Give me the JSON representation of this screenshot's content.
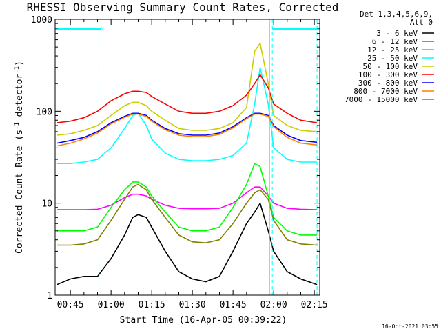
{
  "chart_data": {
    "type": "line",
    "title": "RHESSI Observing Summary Count Rates, Corrected",
    "xlabel": "Start Time (16-Apr-05 00:39:22)",
    "ylabel_main": "Corrected Count Rate (s",
    "ylabel_sup1": "-1",
    "ylabel_mid": " detector",
    "ylabel_sup2": "-1",
    "ylabel_end": ")",
    "yscale": "log",
    "ylim": [
      1,
      1000
    ],
    "xlim": [
      "00:39:22",
      "02:17:00"
    ],
    "x_ticks": [
      "00:45",
      "01:00",
      "01:15",
      "01:30",
      "01:45",
      "02:00",
      "02:15"
    ],
    "y_ticks": [
      "1",
      "10",
      "100",
      "1000"
    ],
    "grid": false,
    "legend_position": "right",
    "legend_header": [
      "Det 1,3,4,5,6,9,",
      "Att 0"
    ],
    "markers": {
      "night_bars": [
        [
          "00:39:22",
          "00:56:30"
        ],
        [
          "01:59:30",
          "02:17:00"
        ]
      ],
      "night_label": "N",
      "vlines_solid": [
        "00:39:22",
        "01:58:30"
      ],
      "vlines_dashed": [
        "00:55:30",
        "01:59:30",
        "02:16:00"
      ]
    },
    "series": [
      {
        "name": "3 - 6 keV",
        "color": "#000000",
        "x": [
          "00:40",
          "00:45",
          "00:50",
          "00:55",
          "01:00",
          "01:05",
          "01:08",
          "01:10",
          "01:13",
          "01:15",
          "01:20",
          "01:25",
          "01:30",
          "01:35",
          "01:40",
          "01:45",
          "01:50",
          "01:53",
          "01:55",
          "01:58",
          "02:00",
          "02:05",
          "02:10",
          "02:16"
        ],
        "values": [
          1.3,
          1.5,
          1.6,
          1.6,
          2.5,
          4.5,
          7,
          7.5,
          7,
          5.5,
          3,
          1.8,
          1.5,
          1.4,
          1.6,
          3,
          6,
          8,
          10,
          5,
          3,
          1.8,
          1.5,
          1.3
        ]
      },
      {
        "name": "6 - 12 keV",
        "color": "#ff00ff",
        "x": [
          "00:40",
          "00:45",
          "00:50",
          "00:55",
          "01:00",
          "01:05",
          "01:08",
          "01:10",
          "01:13",
          "01:15",
          "01:20",
          "01:25",
          "01:30",
          "01:35",
          "01:40",
          "01:45",
          "01:50",
          "01:53",
          "01:55",
          "01:58",
          "02:00",
          "02:05",
          "02:10",
          "02:16"
        ],
        "values": [
          8.5,
          8.5,
          8.5,
          8.6,
          9.5,
          11.5,
          12.5,
          12.5,
          12,
          11,
          9.5,
          8.8,
          8.7,
          8.7,
          8.8,
          10,
          13,
          15,
          15,
          12,
          10,
          8.8,
          8.6,
          8.5
        ]
      },
      {
        "name": "12 - 25 keV",
        "color": "#00ff00",
        "x": [
          "00:40",
          "00:45",
          "00:50",
          "00:55",
          "01:00",
          "01:05",
          "01:08",
          "01:10",
          "01:13",
          "01:15",
          "01:20",
          "01:25",
          "01:30",
          "01:35",
          "01:40",
          "01:45",
          "01:50",
          "01:53",
          "01:55",
          "01:58",
          "02:00",
          "02:05",
          "02:10",
          "02:16"
        ],
        "values": [
          5,
          5,
          5,
          5.5,
          9,
          14,
          17,
          17,
          15,
          12,
          8,
          5.5,
          5,
          5,
          5.5,
          9,
          16,
          27,
          25,
          12,
          7,
          5,
          4.5,
          4.5
        ]
      },
      {
        "name": "25 - 50 keV",
        "color": "#00ffff",
        "x": [
          "00:40",
          "00:45",
          "00:50",
          "00:55",
          "01:00",
          "01:05",
          "01:08",
          "01:10",
          "01:13",
          "01:15",
          "01:20",
          "01:25",
          "01:30",
          "01:35",
          "01:40",
          "01:45",
          "01:50",
          "01:53",
          "01:55",
          "01:58",
          "02:00",
          "02:05",
          "02:10",
          "02:16"
        ],
        "values": [
          27,
          27,
          28,
          30,
          40,
          65,
          90,
          95,
          70,
          50,
          35,
          30,
          29,
          29,
          30,
          33,
          45,
          120,
          300,
          120,
          40,
          30,
          28,
          28
        ]
      },
      {
        "name": "50 - 100 keV",
        "color": "#cccc00",
        "x": [
          "00:40",
          "00:45",
          "00:50",
          "00:55",
          "01:00",
          "01:05",
          "01:08",
          "01:10",
          "01:13",
          "01:15",
          "01:20",
          "01:25",
          "01:30",
          "01:35",
          "01:40",
          "01:45",
          "01:50",
          "01:53",
          "01:55",
          "01:58",
          "02:00",
          "02:05",
          "02:10",
          "02:16"
        ],
        "values": [
          55,
          57,
          62,
          70,
          90,
          115,
          125,
          125,
          115,
          100,
          80,
          65,
          62,
          62,
          65,
          75,
          110,
          450,
          550,
          200,
          90,
          70,
          62,
          60
        ]
      },
      {
        "name": "100 - 300 keV",
        "color": "#ff0000",
        "x": [
          "00:40",
          "00:45",
          "00:50",
          "00:55",
          "01:00",
          "01:05",
          "01:08",
          "01:10",
          "01:13",
          "01:15",
          "01:20",
          "01:25",
          "01:30",
          "01:35",
          "01:40",
          "01:45",
          "01:50",
          "01:53",
          "01:55",
          "01:58",
          "02:00",
          "02:05",
          "02:10",
          "02:16"
        ],
        "values": [
          75,
          78,
          85,
          100,
          130,
          155,
          165,
          165,
          160,
          145,
          120,
          100,
          95,
          95,
          100,
          115,
          150,
          200,
          250,
          180,
          120,
          95,
          80,
          75
        ]
      },
      {
        "name": "300 - 800 keV",
        "color": "#0000ff",
        "x": [
          "00:40",
          "00:45",
          "00:50",
          "00:55",
          "01:00",
          "01:05",
          "01:08",
          "01:10",
          "01:13",
          "01:15",
          "01:20",
          "01:25",
          "01:30",
          "01:35",
          "01:40",
          "01:45",
          "01:50",
          "01:53",
          "01:55",
          "01:58",
          "02:00",
          "02:05",
          "02:10",
          "02:16"
        ],
        "values": [
          45,
          48,
          52,
          60,
          75,
          88,
          95,
          95,
          90,
          80,
          65,
          57,
          55,
          55,
          58,
          68,
          85,
          95,
          95,
          90,
          70,
          55,
          48,
          46
        ]
      },
      {
        "name": "800 - 7000 keV",
        "color": "#ff7f00",
        "x": [
          "00:40",
          "00:45",
          "00:50",
          "00:55",
          "01:00",
          "01:05",
          "01:08",
          "01:10",
          "01:13",
          "01:15",
          "01:20",
          "01:25",
          "01:30",
          "01:35",
          "01:40",
          "01:45",
          "01:50",
          "01:53",
          "01:55",
          "01:58",
          "02:00",
          "02:05",
          "02:10",
          "02:16"
        ],
        "values": [
          42,
          45,
          50,
          58,
          73,
          86,
          93,
          93,
          88,
          78,
          63,
          55,
          53,
          53,
          56,
          66,
          83,
          93,
          93,
          88,
          68,
          52,
          45,
          43
        ]
      },
      {
        "name": "7000 - 15000 keV",
        "color": "#808000",
        "x": [
          "00:40",
          "00:45",
          "00:50",
          "00:55",
          "01:00",
          "01:05",
          "01:08",
          "01:10",
          "01:13",
          "01:15",
          "01:20",
          "01:25",
          "01:30",
          "01:35",
          "01:40",
          "01:45",
          "01:50",
          "01:53",
          "01:55",
          "01:58",
          "02:00",
          "02:05",
          "02:10",
          "02:16"
        ],
        "values": [
          3.5,
          3.5,
          3.6,
          4,
          6.5,
          11,
          15,
          16,
          14,
          11,
          7,
          4.5,
          3.8,
          3.7,
          4,
          6,
          10,
          13,
          14,
          11,
          6.5,
          4,
          3.6,
          3.5
        ]
      }
    ]
  },
  "footer_timestamp": "16-Oct-2021 03:55"
}
